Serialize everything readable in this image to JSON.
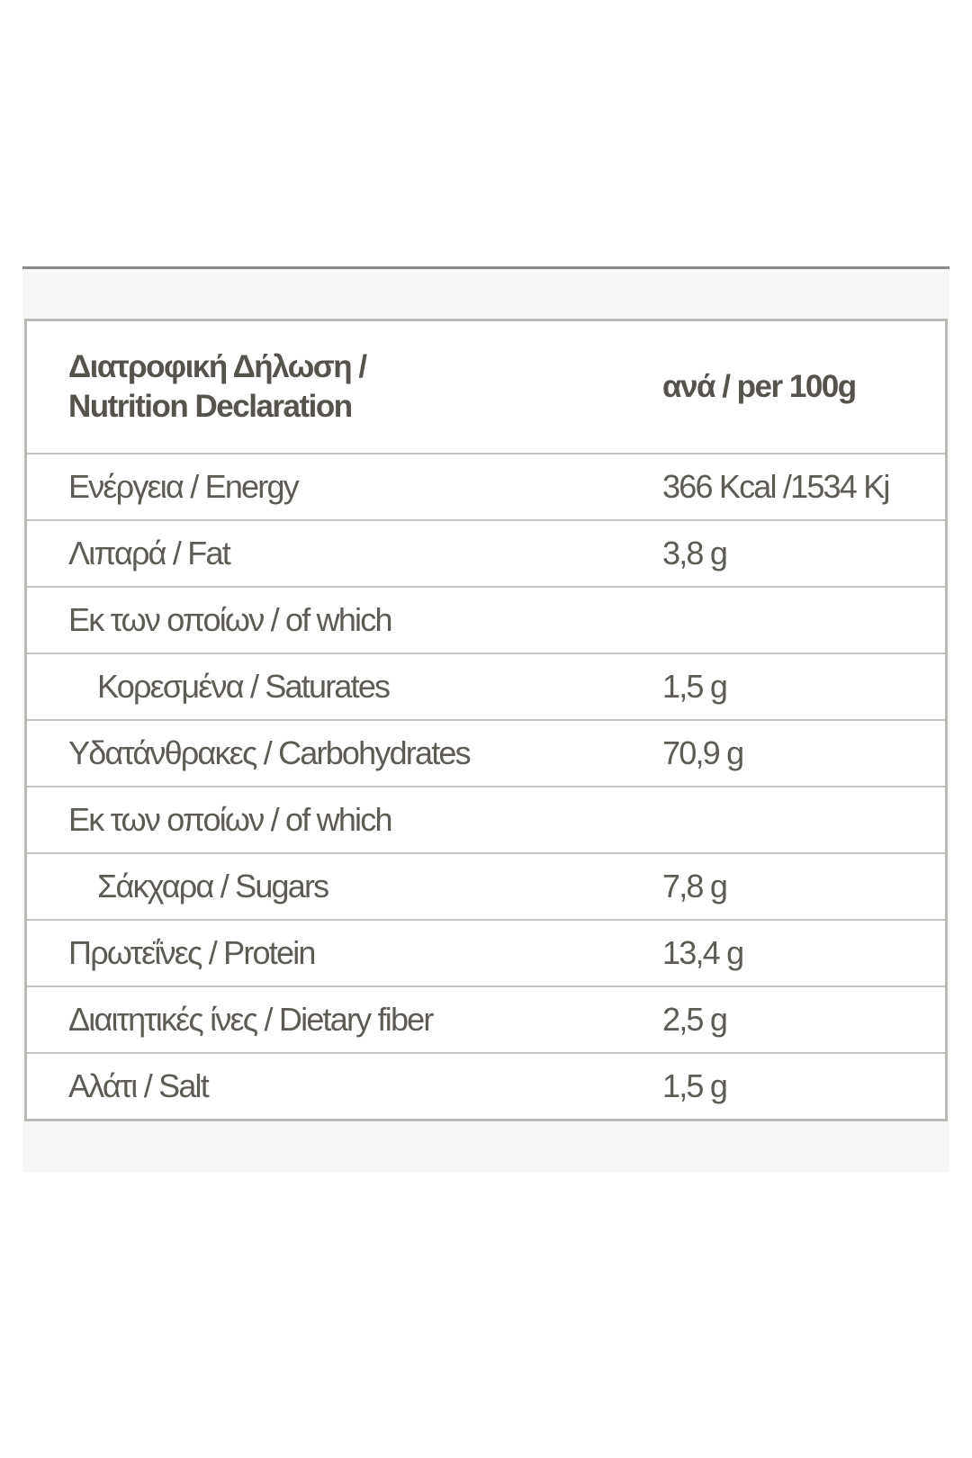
{
  "table": {
    "header": {
      "label": [
        "Διατροφική Δήλωση /",
        "Nutrition Declaration"
      ],
      "value": "ανά / per 100g"
    },
    "rows": [
      {
        "label": "Ενέργεια / Energy",
        "value": "366  Kcal /1534 Kj"
      },
      {
        "label": "Λιπαρά / Fat",
        "value": "3,8 g"
      },
      {
        "label": "Εκ των οποίων / of which"
      },
      {
        "label": "Κορεσμένα / Saturates",
        "value": "1,5 g",
        "indent": true
      },
      {
        "label": "Υδατάνθρακες / Carbohydrates",
        "value": "70,9 g"
      },
      {
        "label": "Εκ των οποίων / of which"
      },
      {
        "label": "Σάκχαρα / Sugars",
        "value": "7,8 g",
        "indent": true
      },
      {
        "label": "Πρωτεΐνες / Protein",
        "value": "13,4 g"
      },
      {
        "label": "Διαιτητικές ίνες / Dietary fiber",
        "value": "2,5 g"
      },
      {
        "label": "Αλάτι / Salt",
        "value": "1,5 g"
      }
    ]
  }
}
